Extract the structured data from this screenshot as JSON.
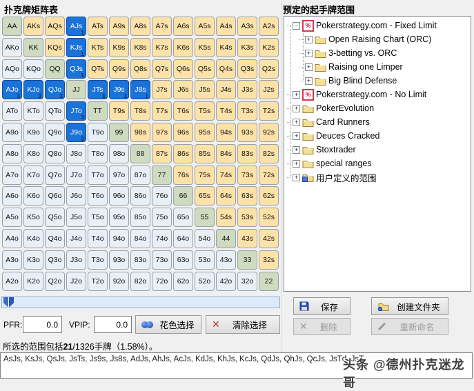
{
  "left_panel": {
    "title": "扑克牌矩阵表"
  },
  "matrix": {
    "ranks": [
      "A",
      "K",
      "Q",
      "J",
      "T",
      "9",
      "8",
      "7",
      "6",
      "5",
      "4",
      "3",
      "2"
    ],
    "suited_suffix": "s",
    "offsuit_suffix": "o",
    "selected": {
      "AJs": "1",
      "KJs": "1",
      "QJs": "1",
      "JTs": "1",
      "J9s": "1",
      "J8s": "1",
      "AJo": "3",
      "KJo": "3",
      "QJo": "3",
      "JTo": "3",
      "J9o": "3"
    },
    "colors": {
      "selected": "#1a73d8",
      "pair": "#cedbc0",
      "suited": "#fce2a8",
      "offsuit": "#e9eff6"
    }
  },
  "stats": {
    "pfr_label": "PFR:",
    "pfr_value": "0.0",
    "vpip_label": "VPIP:",
    "vpip_value": "0.0"
  },
  "buttons": {
    "suit_select": "花色选择",
    "clear_selection": "清除选择",
    "save": "保存",
    "create_folder": "创建文件夹",
    "delete": "删除",
    "rename": "重新命名"
  },
  "status": {
    "prefix": "所选的范围包括",
    "count": "21",
    "suffix": "/1326手牌（1.58%）。"
  },
  "hands_text": "AsJs, KsJs, QsJs, JsTs, Js9s, Js8s, AdJs, AhJs, AcJs, KdJs, KhJs, KcJs, QdJs, QhJs, QcJs, JsTd, JsT",
  "watermark": "头条 @德州扑克迷龙哥",
  "right_panel": {
    "title": "预定的起手牌范围",
    "tree": [
      {
        "label": "Pokerstrategy.com - Fixed Limit",
        "icon": "pokerstrategy",
        "expand": "minus",
        "depth": 0
      },
      {
        "label": "Open Raising Chart (ORC)",
        "icon": "folder",
        "expand": "plus",
        "depth": 1
      },
      {
        "label": "3-betting vs. ORC",
        "icon": "folder",
        "expand": "plus",
        "depth": 1
      },
      {
        "label": "Raising one Limper",
        "icon": "folder",
        "expand": "plus",
        "depth": 1
      },
      {
        "label": "Big Blind Defense",
        "icon": "folder",
        "expand": "plus",
        "depth": 1
      },
      {
        "label": "Pokerstrategy.com - No Limit",
        "icon": "pokerstrategy",
        "expand": "plus",
        "depth": 0
      },
      {
        "label": "PokerEvolution",
        "icon": "folder",
        "expand": "plus",
        "depth": 0
      },
      {
        "label": "Card Runners",
        "icon": "folder",
        "expand": "plus",
        "depth": 0
      },
      {
        "label": "Deuces Cracked",
        "icon": "folder",
        "expand": "plus",
        "depth": 0
      },
      {
        "label": "Stoxtrader",
        "icon": "folder",
        "expand": "plus",
        "depth": 0
      },
      {
        "label": "special ranges",
        "icon": "folder",
        "expand": "plus",
        "depth": 0
      },
      {
        "label": "用户定义的范围",
        "icon": "user-folder",
        "expand": "plus",
        "depth": 0
      }
    ]
  }
}
